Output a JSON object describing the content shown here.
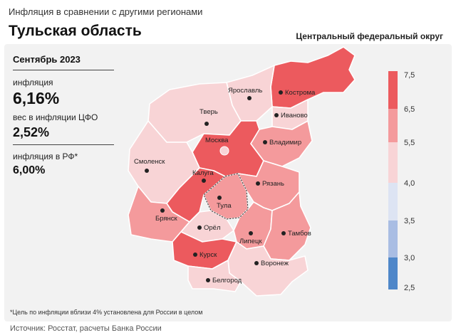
{
  "header": {
    "subtitle": "Инфляция  в сравнении  с другими  регионами",
    "title": "Тульская область",
    "district": "Центральный федеральный округ"
  },
  "stats": {
    "month": "Сентябрь 2023",
    "inflation_label": "инфляция",
    "inflation_value": "6,16%",
    "weight_label": "вес в инфляции ЦФО",
    "weight_value": "2,52%",
    "rf_label": "инфляция  в РФ*",
    "rf_value": "6,00%"
  },
  "legend": {
    "ticks": [
      "7,5",
      "6,5",
      "5,5",
      "4,0",
      "3,5",
      "3,0",
      "2,5"
    ],
    "colors": [
      "#ec5a5e",
      "#f49a9c",
      "#f8d4d6",
      "#dde4f3",
      "#a9bde3",
      "#4f87c9"
    ]
  },
  "regions": [
    {
      "name": "Кострома",
      "color": "#ec5a5e"
    },
    {
      "name": "Ярославль",
      "color": "#f8d4d6"
    },
    {
      "name": "Иваново",
      "color": "#f8d4d6"
    },
    {
      "name": "Тверь",
      "color": "#f8d4d6"
    },
    {
      "name": "Москва",
      "color": "#ec5a5e"
    },
    {
      "name": "Владимир",
      "color": "#f49a9c"
    },
    {
      "name": "Смоленск",
      "color": "#f8d4d6"
    },
    {
      "name": "Калуга",
      "color": "#ec5a5e"
    },
    {
      "name": "Тула",
      "color": "#f49a9c"
    },
    {
      "name": "Рязань",
      "color": "#f49a9c"
    },
    {
      "name": "Брянск",
      "color": "#f49a9c"
    },
    {
      "name": "Орёл",
      "color": "#f8d4d6"
    },
    {
      "name": "Липецк",
      "color": "#f49a9c"
    },
    {
      "name": "Тамбов",
      "color": "#f49a9c"
    },
    {
      "name": "Курск",
      "color": "#ec5a5e"
    },
    {
      "name": "Воронеж",
      "color": "#f8d4d6"
    },
    {
      "name": "Белгород",
      "color": "#f8d4d6"
    }
  ],
  "footnote": "*Цель по инфляции вблизи 4% установлена для России в целом",
  "source": "Источник: Росстат, расчеты Банка России"
}
